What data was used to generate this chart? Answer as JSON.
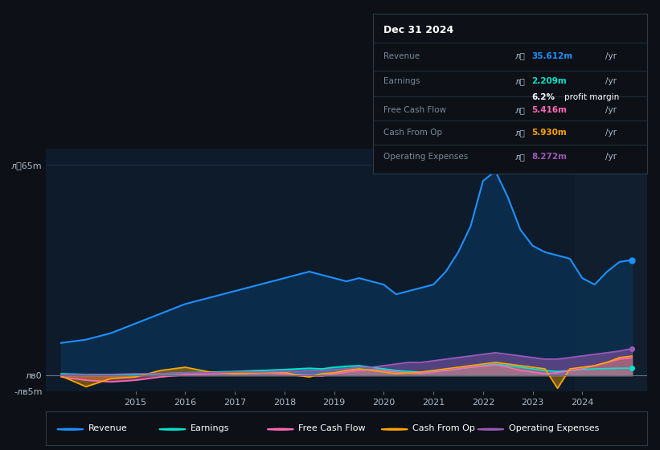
{
  "bg_color": "#0d1117",
  "plot_bg_color": "#0d1b2a",
  "grid_color": "#2a3a4a",
  "box_bg_color": "#0d1117",
  "box_border_color": "#2a3a4a",
  "title": "Dec 31 2024",
  "years": [
    2013.5,
    2014.0,
    2014.5,
    2015.0,
    2015.5,
    2016.0,
    2016.5,
    2017.0,
    2017.5,
    2018.0,
    2018.25,
    2018.5,
    2018.75,
    2019.0,
    2019.25,
    2019.5,
    2019.75,
    2020.0,
    2020.25,
    2020.5,
    2020.75,
    2021.0,
    2021.25,
    2021.5,
    2021.75,
    2022.0,
    2022.25,
    2022.5,
    2022.75,
    2023.0,
    2023.25,
    2023.5,
    2023.75,
    2024.0,
    2024.25,
    2024.5,
    2024.75,
    2025.0
  ],
  "revenue": [
    10,
    11,
    13,
    16,
    19,
    22,
    24,
    26,
    28,
    30,
    31,
    32,
    31,
    30,
    29,
    30,
    29,
    28,
    25,
    26,
    27,
    28,
    32,
    38,
    46,
    60,
    63,
    55,
    45,
    40,
    38,
    37,
    36,
    30,
    28,
    32,
    35,
    35.6
  ],
  "earnings": [
    0.5,
    0.3,
    0.2,
    0.2,
    0.5,
    0.8,
    1.0,
    1.2,
    1.5,
    1.8,
    2.0,
    2.2,
    2.0,
    2.5,
    2.8,
    3.0,
    2.5,
    2.0,
    1.5,
    1.2,
    1.0,
    1.2,
    1.5,
    2.0,
    2.5,
    3.0,
    3.5,
    3.0,
    2.5,
    2.0,
    1.5,
    1.2,
    1.5,
    1.8,
    2.0,
    2.1,
    2.2,
    2.209
  ],
  "free_cash_flow": [
    -0.5,
    -1.5,
    -2.0,
    -1.5,
    -0.5,
    0.2,
    0.5,
    0.8,
    1.0,
    0.5,
    0.2,
    0.0,
    -0.2,
    0.5,
    1.0,
    1.5,
    1.8,
    1.5,
    1.0,
    0.8,
    0.5,
    1.0,
    1.5,
    2.0,
    2.5,
    2.8,
    3.2,
    2.5,
    1.5,
    1.0,
    0.5,
    0.8,
    1.5,
    2.0,
    3.0,
    4.0,
    5.0,
    5.416
  ],
  "cash_from_op": [
    -0.2,
    -3.5,
    -1.0,
    -0.5,
    1.5,
    2.5,
    1.0,
    0.5,
    0.8,
    1.0,
    0.0,
    -0.5,
    0.5,
    0.8,
    1.5,
    2.0,
    1.5,
    1.0,
    0.5,
    0.8,
    1.0,
    1.5,
    2.0,
    2.5,
    3.0,
    3.5,
    4.0,
    3.5,
    3.0,
    2.5,
    2.0,
    -4.0,
    2.0,
    2.5,
    3.0,
    4.0,
    5.5,
    5.93
  ],
  "operating_expenses": [
    0.2,
    0.3,
    0.3,
    0.5,
    0.5,
    0.8,
    0.8,
    1.0,
    1.0,
    1.2,
    1.2,
    1.5,
    1.5,
    1.8,
    2.0,
    2.5,
    2.5,
    3.0,
    3.5,
    4.0,
    4.0,
    4.5,
    5.0,
    5.5,
    6.0,
    6.5,
    7.0,
    6.5,
    6.0,
    5.5,
    5.0,
    5.0,
    5.5,
    6.0,
    6.5,
    7.0,
    7.5,
    8.272
  ],
  "ylim": [
    -5,
    70
  ],
  "xlim": [
    2013.2,
    2025.3
  ],
  "yticks": [
    -5,
    0,
    65
  ],
  "ytick_labels": [
    "-лв5m",
    "лв0",
    "л䌠65m"
  ],
  "xticks": [
    2015,
    2016,
    2017,
    2018,
    2019,
    2020,
    2021,
    2022,
    2023,
    2024
  ],
  "revenue_color": "#1e90ff",
  "revenue_fill_color": "#0a3050",
  "earnings_color": "#00e5cc",
  "free_cash_flow_color": "#ff69b4",
  "cash_from_op_color": "#ffa500",
  "operating_expenses_color": "#9b59b6",
  "shaded_region_start": 2023.85,
  "legend": [
    {
      "label": "Revenue",
      "color": "#1e90ff"
    },
    {
      "label": "Earnings",
      "color": "#00e5cc"
    },
    {
      "label": "Free Cash Flow",
      "color": "#ff69b4"
    },
    {
      "label": "Cash From Op",
      "color": "#ffa500"
    },
    {
      "label": "Operating Expenses",
      "color": "#9b59b6"
    }
  ],
  "table_rows": [
    {
      "label": "Revenue",
      "prefix": "л䌠",
      "value": "35.612m",
      "value_color": "#1e90ff",
      "suffix": " /yr",
      "sub": null,
      "divider": true
    },
    {
      "label": "Earnings",
      "prefix": "л䌠",
      "value": "2.209m",
      "value_color": "#00e5cc",
      "suffix": " /yr",
      "sub": "6.2% profit margin",
      "divider": true
    },
    {
      "label": "Free Cash Flow",
      "prefix": "л䌠",
      "value": "5.416m",
      "value_color": "#ff69b4",
      "suffix": " /yr",
      "sub": null,
      "divider": true
    },
    {
      "label": "Cash From Op",
      "prefix": "л䌠",
      "value": "5.930m",
      "value_color": "#ffa500",
      "suffix": " /yr",
      "sub": null,
      "divider": true
    },
    {
      "label": "Operating Expenses",
      "prefix": "л䌠",
      "value": "8.272m",
      "value_color": "#9b59b6",
      "suffix": " /yr",
      "sub": null,
      "divider": false
    }
  ]
}
